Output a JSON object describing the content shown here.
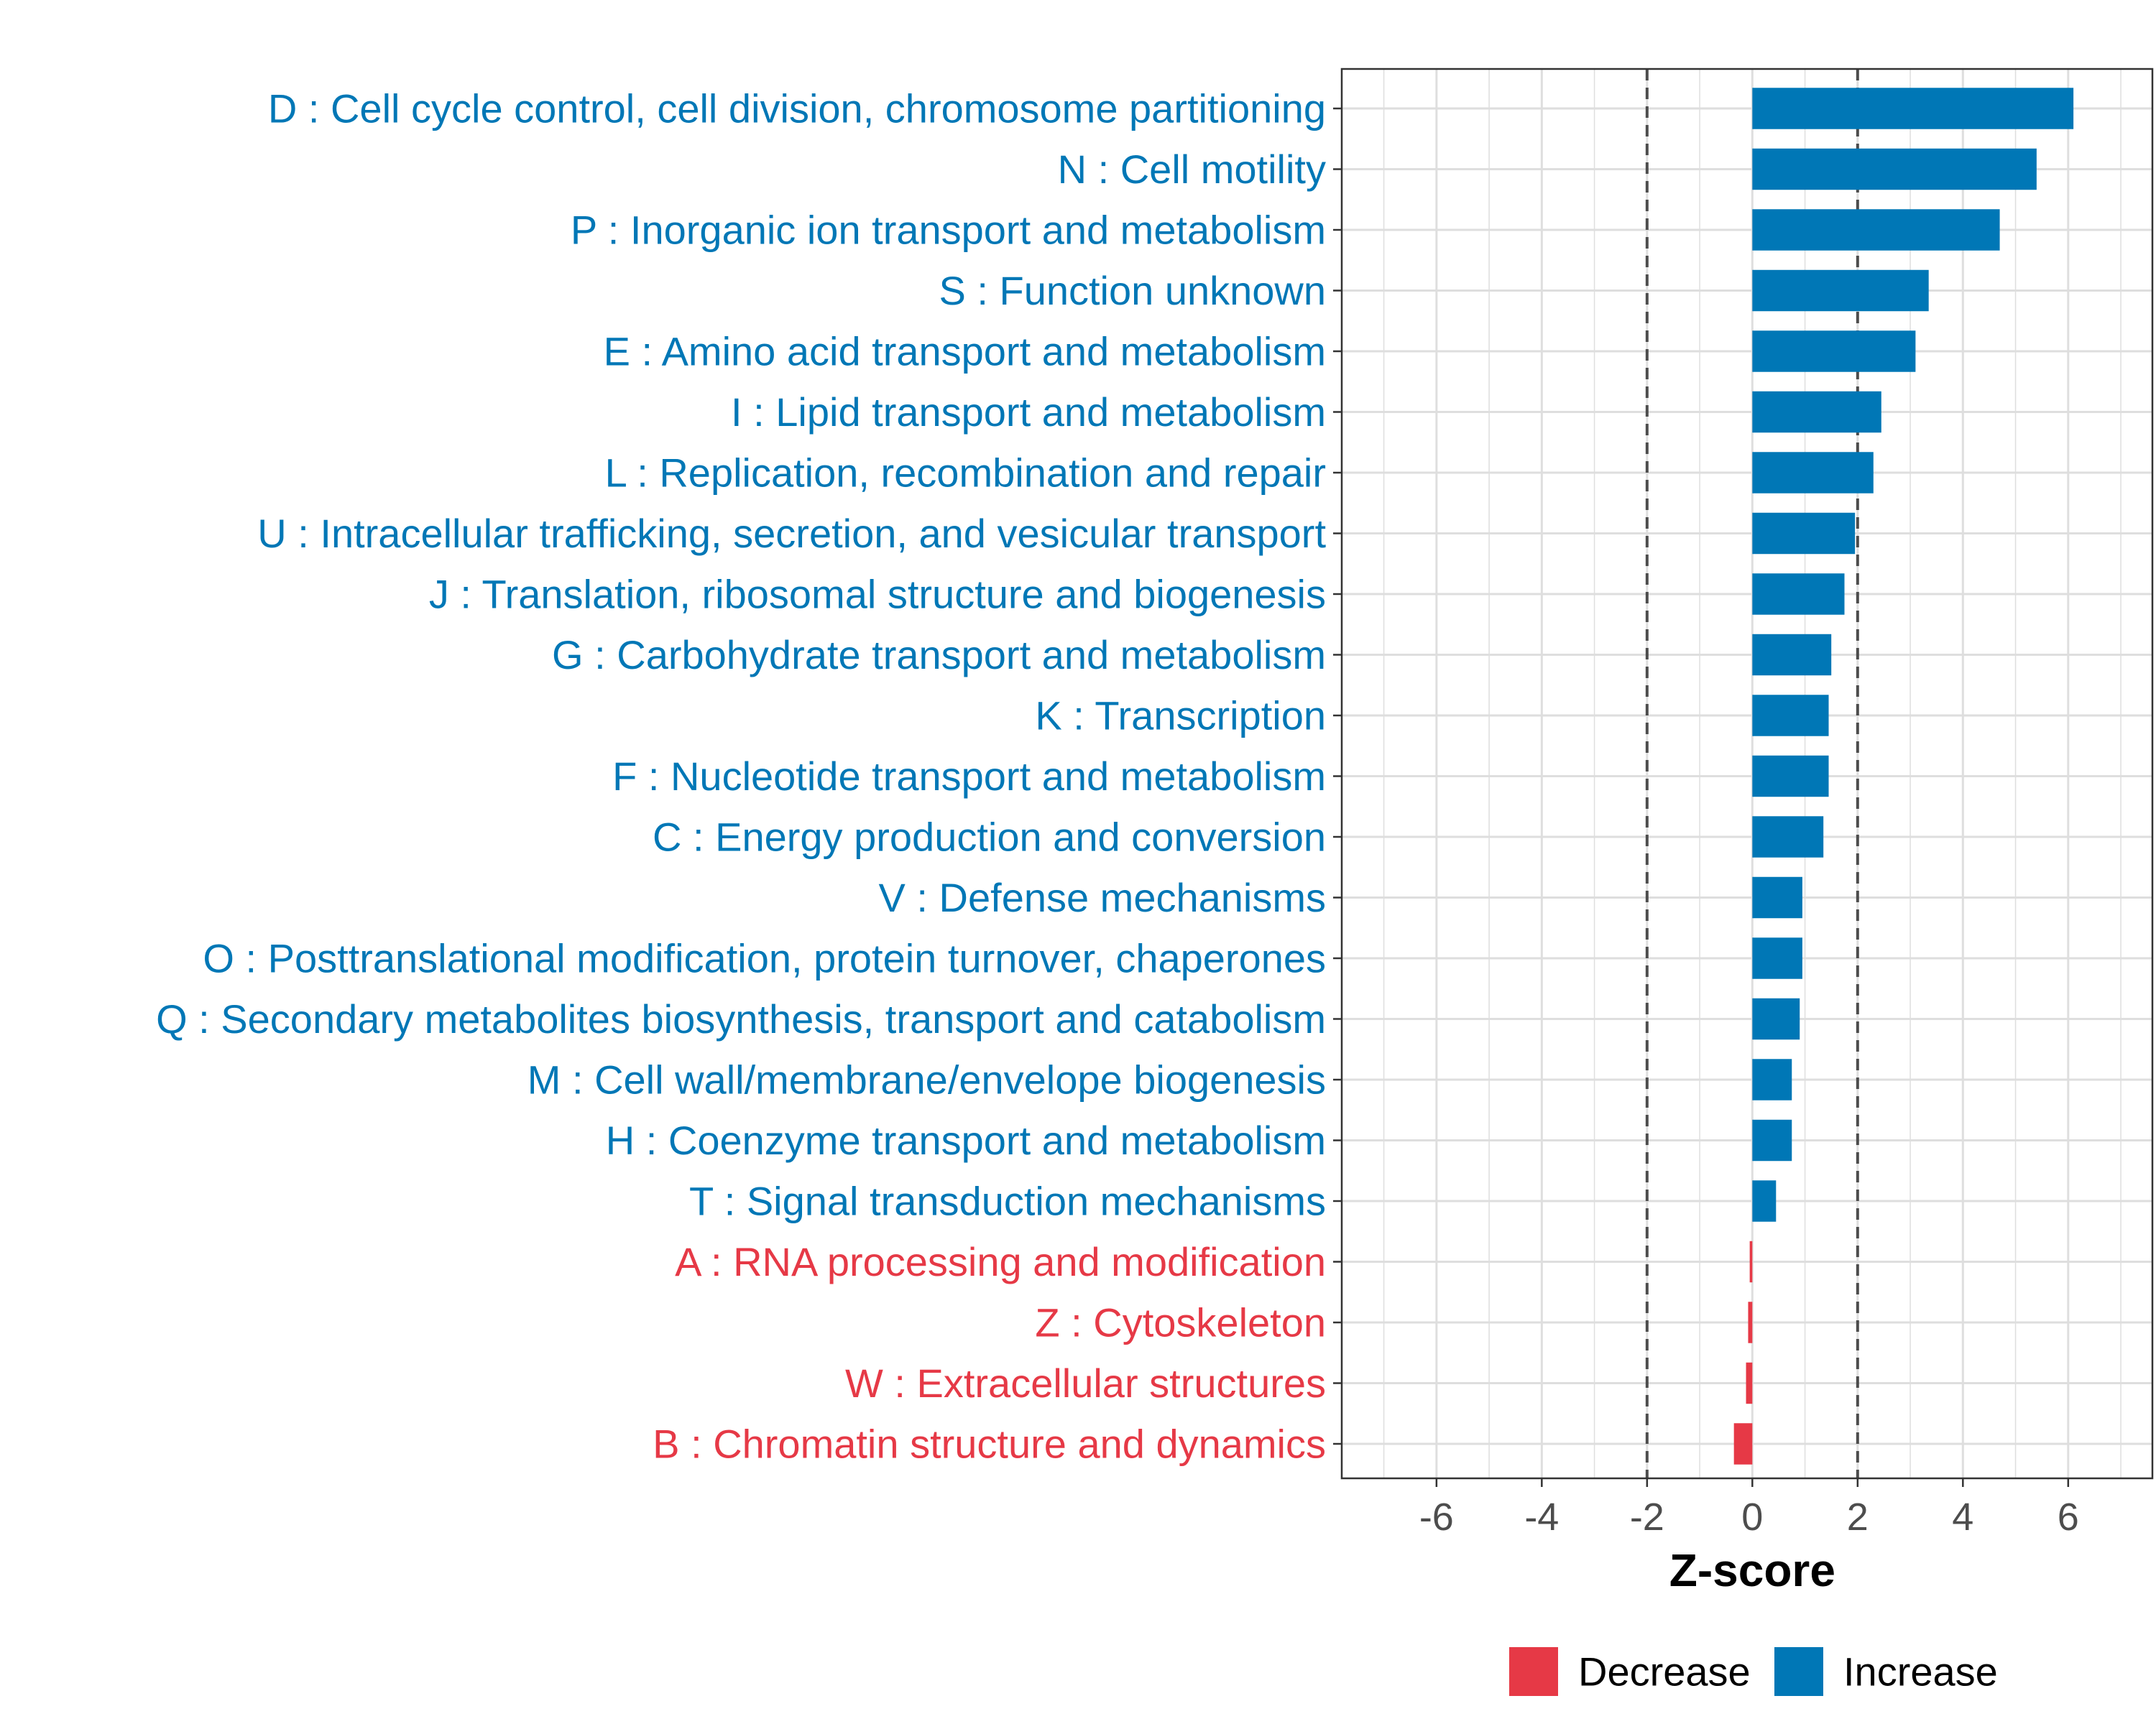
{
  "chart_data": {
    "type": "bar",
    "orientation": "horizontal",
    "title": "",
    "xlabel": "Z-score",
    "ylabel": "",
    "xlim": [
      -7.8,
      7.6
    ],
    "xticks": [
      "-6",
      "-4",
      "-2",
      "0",
      "2",
      "4",
      "6"
    ],
    "reference_lines": [
      -2,
      2
    ],
    "grid": true,
    "categories": [
      "D : Cell cycle control, cell division, chromosome partitioning",
      "N : Cell motility",
      "P : Inorganic ion transport and metabolism",
      "S : Function unknown",
      "E : Amino acid transport and metabolism",
      "I : Lipid transport and metabolism",
      "L : Replication, recombination and repair",
      "U : Intracellular trafficking, secretion, and vesicular transport",
      "J : Translation, ribosomal structure and biogenesis",
      "G : Carbohydrate transport and metabolism",
      "K : Transcription",
      "F : Nucleotide transport and metabolism",
      "C : Energy production and conversion",
      "V : Defense mechanisms",
      "O : Posttranslational modification, protein turnover, chaperones",
      "Q : Secondary metabolites biosynthesis, transport and catabolism",
      "M : Cell wall/membrane/envelope biogenesis",
      "H : Coenzyme transport and metabolism",
      "T : Signal transduction mechanisms",
      "A : RNA processing and modification",
      "Z : Cytoskeleton",
      "W : Extracellular structures",
      "B : Chromatin structure and dynamics"
    ],
    "values": [
      6.1,
      5.4,
      4.7,
      3.35,
      3.1,
      2.45,
      2.3,
      1.95,
      1.75,
      1.5,
      1.45,
      1.45,
      1.35,
      0.95,
      0.95,
      0.9,
      0.75,
      0.75,
      0.45,
      -0.05,
      -0.08,
      -0.12,
      -0.35
    ],
    "groups": [
      "Increase",
      "Increase",
      "Increase",
      "Increase",
      "Increase",
      "Increase",
      "Increase",
      "Increase",
      "Increase",
      "Increase",
      "Increase",
      "Increase",
      "Increase",
      "Increase",
      "Increase",
      "Increase",
      "Increase",
      "Increase",
      "Increase",
      "Decrease",
      "Decrease",
      "Decrease",
      "Decrease"
    ],
    "legend": {
      "position": "bottom",
      "items": [
        {
          "label": "Decrease",
          "color": "#e63946"
        },
        {
          "label": "Increase",
          "color": "#0077b6"
        }
      ]
    },
    "colors": {
      "Increase": "#0077b6",
      "Decrease": "#e63946"
    }
  }
}
